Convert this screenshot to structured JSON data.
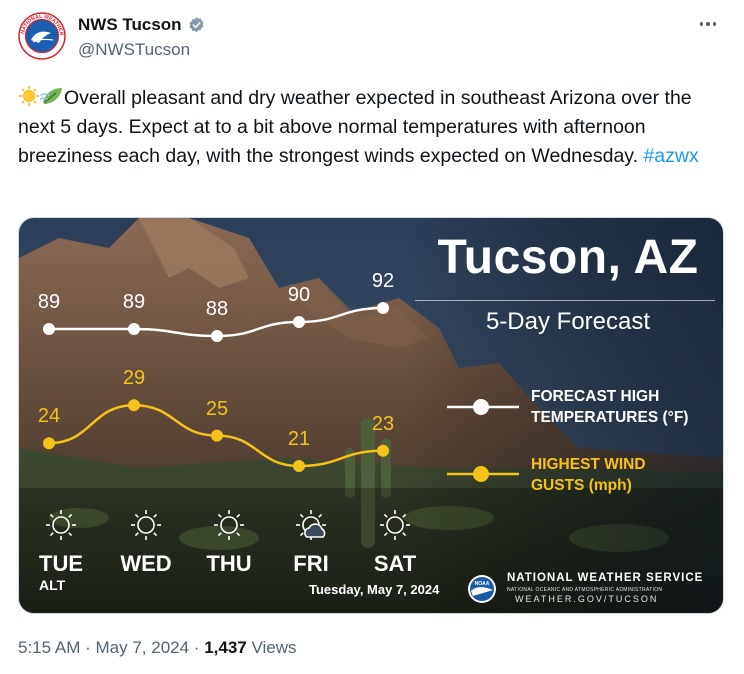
{
  "author": {
    "display_name": "NWS Tucson",
    "handle": "@NWSTucson",
    "verified": true,
    "avatar_text_top": "NATIONAL WEATHER",
    "avatar_text_side": "SERVICE"
  },
  "tweet": {
    "text": "Overall pleasant and dry weather expected in southeast Arizona over the next 5 days. Expect at to a bit above normal temperatures with afternoon breeziness each day, with the strongest winds expected on Wednesday. ",
    "hashtag": "#azwx",
    "emojis": [
      "sun-with-cloud",
      "wind-leaf"
    ]
  },
  "graphic": {
    "title": "Tucson, AZ",
    "subtitle": "5-Day Forecast",
    "legend_high": [
      "FORECAST HIGH",
      "TEMPERATURES (°F)"
    ],
    "legend_wind": [
      "HIGHEST WIND",
      "GUSTS (mph)"
    ],
    "days": [
      "TUE",
      "WED",
      "THU",
      "FRI",
      "SAT"
    ],
    "alt_label": "ALT",
    "date": "Tuesday, May 7, 2024",
    "agency_name": "NATIONAL WEATHER SERVICE",
    "agency_sub": "NATIONAL OCEANIC AND ATMOSPHERIC ADMINISTRATION",
    "agency_url": "WEATHER.GOV/TUCSON",
    "noaa_label": "NOAA",
    "icons": [
      "sun-icon",
      "sun-icon",
      "sun-icon",
      "partly-cloudy-icon",
      "sun-icon"
    ],
    "colors": {
      "temp_line": "#ffffff",
      "gust_line": "#f5c21a"
    }
  },
  "chart_data": {
    "type": "line",
    "categories": [
      "TUE",
      "WED",
      "THU",
      "FRI",
      "SAT"
    ],
    "series": [
      {
        "name": "FORECAST HIGH TEMPERATURES (°F)",
        "values": [
          89,
          89,
          88,
          90,
          92
        ]
      },
      {
        "name": "HIGHEST WIND GUSTS (mph)",
        "values": [
          24,
          29,
          25,
          21,
          23
        ]
      }
    ],
    "title": "Tucson, AZ",
    "subtitle": "5-Day Forecast",
    "legend": "right"
  },
  "footer": {
    "time": "5:15 AM",
    "date": "May 7, 2024",
    "views_count": "1,437",
    "views_label": "Views"
  }
}
